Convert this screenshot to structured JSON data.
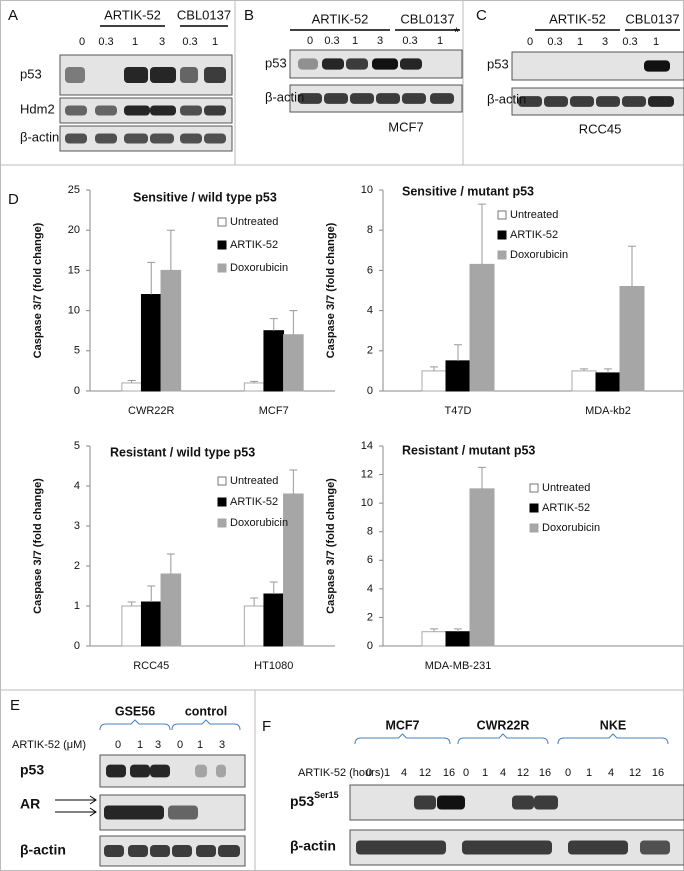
{
  "panels": {
    "A": {
      "label": "A",
      "groups": [
        "ARTIK-52",
        "CBL0137"
      ],
      "lanes": [
        "0",
        "0.3",
        "1",
        "3",
        "0.3",
        "1"
      ],
      "rows": [
        "p53",
        "Hdm2",
        "β-actin"
      ]
    },
    "B": {
      "label": "B",
      "groups": [
        "ARTIK-52",
        "CBL0137"
      ],
      "lanes": [
        "0",
        "0.3",
        "1",
        "3",
        "0.3",
        "1"
      ],
      "mark": "*",
      "rows": [
        "p53",
        "β-actin"
      ],
      "caption": "MCF7"
    },
    "C": {
      "label": "C",
      "groups": [
        "ARTIK-52",
        "CBL0137"
      ],
      "lanes": [
        "0",
        "0.3",
        "1",
        "3",
        "0.3",
        "1"
      ],
      "rows": [
        "p53",
        "β-actin"
      ],
      "caption": "RCC45"
    },
    "D": {
      "label": "D"
    },
    "E": {
      "label": "E",
      "groups": [
        "GSE56",
        "control"
      ],
      "treatment": "ARTIK-52 (μM)",
      "lanes": [
        "0",
        "1",
        "3",
        "0",
        "1",
        "3"
      ],
      "rows": [
        "p53",
        "AR",
        "β-actin"
      ]
    },
    "F": {
      "label": "F",
      "groups": [
        "MCF7",
        "CWR22R",
        "NKE"
      ],
      "treatment": "ARTIK-52 (hours)",
      "lanes": [
        "0",
        "1",
        "4",
        "12",
        "16",
        "0",
        "1",
        "4",
        "12",
        "16",
        "0",
        "1",
        "4",
        "12",
        "16"
      ],
      "rows": [
        {
          "label": "p53",
          "sup": "Ser15"
        },
        {
          "label": "β-actin"
        }
      ]
    }
  },
  "chart_data": [
    {
      "type": "bar",
      "title": "Sensitive / wild type p53",
      "y_label": "Caspase 3/7 (fold change)",
      "categories": [
        "CWR22R",
        "MCF7"
      ],
      "series": [
        {
          "name": "Untreated",
          "color": "#ffffff",
          "values": [
            1,
            1
          ],
          "errors": [
            0.3,
            0.2
          ]
        },
        {
          "name": "ARTIK-52",
          "color": "#000000",
          "values": [
            12,
            7.5
          ],
          "errors": [
            4,
            1.5
          ]
        },
        {
          "name": "Doxorubicin",
          "color": "#a6a6a6",
          "values": [
            15,
            7
          ],
          "errors": [
            5,
            3
          ]
        }
      ],
      "ylim": [
        0,
        25
      ],
      "yticks": [
        0,
        5,
        10,
        15,
        20,
        25
      ]
    },
    {
      "type": "bar",
      "title": "Sensitive / mutant p53",
      "y_label": "Caspase 3/7 (fold change)",
      "categories": [
        "T47D",
        "MDA-kb2"
      ],
      "series": [
        {
          "name": "Untreated",
          "color": "#ffffff",
          "values": [
            1,
            1
          ],
          "errors": [
            0.2,
            0.1
          ]
        },
        {
          "name": "ARTIK-52",
          "color": "#000000",
          "values": [
            1.5,
            0.9
          ],
          "errors": [
            0.8,
            0.2
          ]
        },
        {
          "name": "Doxorubicin",
          "color": "#a6a6a6",
          "values": [
            6.3,
            5.2
          ],
          "errors": [
            3,
            2
          ]
        }
      ],
      "ylim": [
        0,
        10
      ],
      "yticks": [
        0,
        2,
        4,
        6,
        8,
        10
      ]
    },
    {
      "type": "bar",
      "title": "Resistant / wild type p53",
      "y_label": "Caspase 3/7 (fold change)",
      "categories": [
        "RCC45",
        "HT1080"
      ],
      "series": [
        {
          "name": "Untreated",
          "color": "#ffffff",
          "values": [
            1,
            1
          ],
          "errors": [
            0.1,
            0.2
          ]
        },
        {
          "name": "ARTIK-52",
          "color": "#000000",
          "values": [
            1.1,
            1.3
          ],
          "errors": [
            0.4,
            0.3
          ]
        },
        {
          "name": "Doxorubicin",
          "color": "#a6a6a6",
          "values": [
            1.8,
            3.8
          ],
          "errors": [
            0.5,
            0.6
          ]
        }
      ],
      "ylim": [
        0,
        5
      ],
      "yticks": [
        0,
        1,
        2,
        3,
        4,
        5
      ]
    },
    {
      "type": "bar",
      "title": "Resistant / mutant p53",
      "y_label": "Caspase 3/7 (fold change)",
      "categories": [
        "MDA-MB-231",
        null
      ],
      "series": [
        {
          "name": "Untreated",
          "color": "#ffffff",
          "values": [
            1,
            null
          ],
          "errors": [
            0.2,
            null
          ]
        },
        {
          "name": "ARTIK-52",
          "color": "#000000",
          "values": [
            1,
            null
          ],
          "errors": [
            0.2,
            null
          ]
        },
        {
          "name": "Doxorubicin",
          "color": "#a6a6a6",
          "values": [
            11,
            null
          ],
          "errors": [
            1.5,
            null
          ]
        }
      ],
      "ylim": [
        0,
        14
      ],
      "yticks": [
        0,
        2,
        4,
        6,
        8,
        10,
        12,
        14
      ]
    }
  ]
}
